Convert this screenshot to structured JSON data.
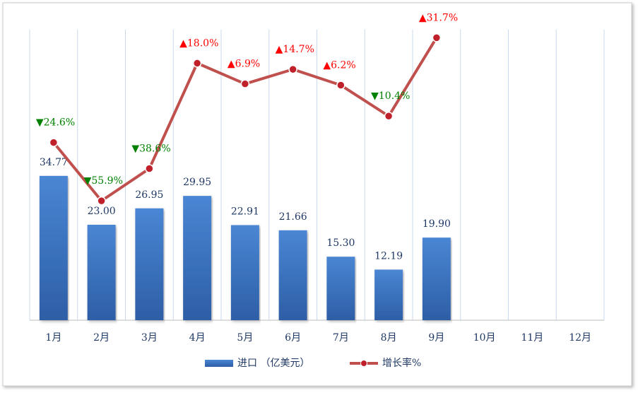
{
  "chart_data": {
    "type": "bar",
    "categories": [
      "1月",
      "2月",
      "3月",
      "4月",
      "5月",
      "6月",
      "7月",
      "8月",
      "9月",
      "10月",
      "11月",
      "12月"
    ],
    "series": [
      {
        "name": "进口 （亿美元）",
        "type": "bar",
        "color": "#3a75c4",
        "values": [
          34.77,
          23.0,
          26.95,
          29.95,
          22.91,
          21.66,
          15.3,
          12.19,
          19.9,
          null,
          null,
          null
        ],
        "value_labels": [
          "34.77",
          "23.00",
          "26.95",
          "29.95",
          "22.91",
          "21.66",
          "15.30",
          "12.19",
          "19.90",
          null,
          null,
          null
        ]
      },
      {
        "name": "增长率%",
        "type": "line",
        "axis": "y2",
        "color": "#c0504d",
        "values": [
          -24.6,
          -55.9,
          -38.6,
          18.0,
          6.9,
          14.7,
          6.2,
          -10.4,
          31.7,
          null,
          null,
          null
        ],
        "value_labels": [
          "▼24.6%",
          "▼55.9%",
          "▼38.6%",
          "▲18.0%",
          "▲6.9%",
          "▲14.7%",
          "▲6.2%",
          "▼10.4%",
          "▲31.7%",
          null,
          null,
          null
        ]
      }
    ],
    "ylim": [
      0,
      70
    ],
    "y2lim": [
      -120,
      36
    ],
    "grid": true
  }
}
